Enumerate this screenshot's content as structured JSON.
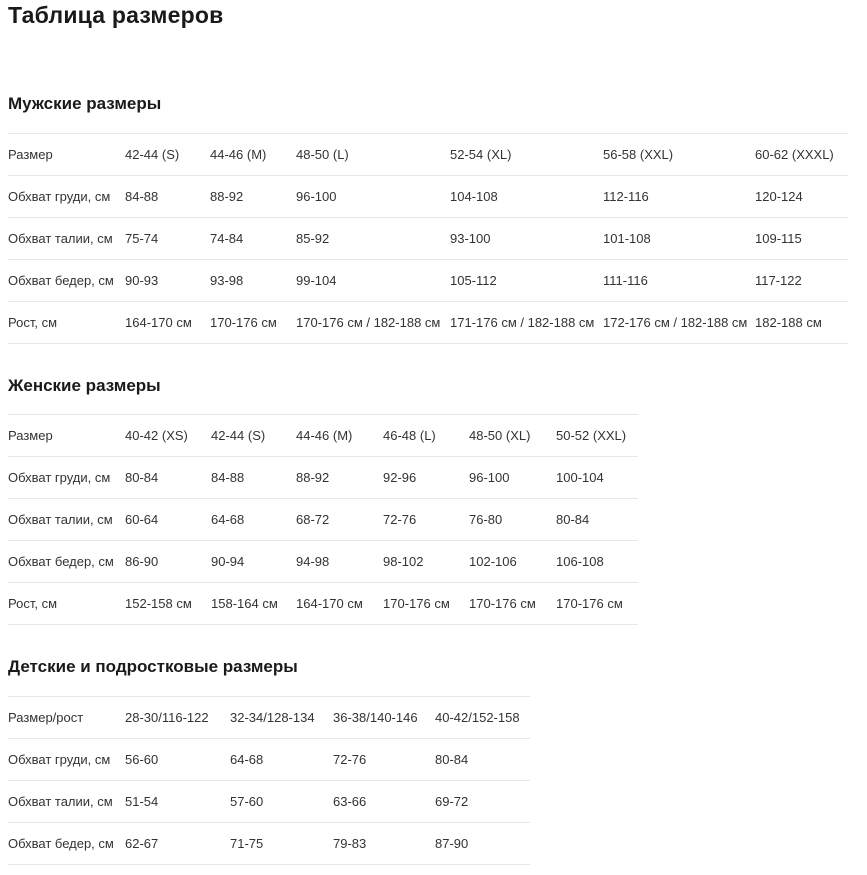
{
  "page": {
    "title": "Таблица размеров"
  },
  "sections": [
    {
      "heading": "Мужские размеры",
      "table": {
        "header": [
          "Размер",
          "42-44 (S)",
          "44-46 (M)",
          "48-50 (L)",
          "52-54 (XL)",
          "56-58 (XXL)",
          "60-62 (XXXL)"
        ],
        "rows": [
          [
            "Обхват груди, см",
            "84-88",
            "88-92",
            "96-100",
            "104-108",
            "112-116",
            "120-124"
          ],
          [
            "Обхват талии, см",
            "75-74",
            "74-84",
            "85-92",
            "93-100",
            "101-108",
            "109-115"
          ],
          [
            "Обхват бедер, см",
            "90-93",
            "93-98",
            "99-104",
            "105-112",
            "111-116",
            "117-122"
          ],
          [
            "Рост, см",
            "164-170 см",
            "170-176 см",
            "170-176 см / 182-188 см",
            "171-176 см / 182-188 см",
            "172-176 см / 182-188 см",
            "182-188 см"
          ]
        ]
      }
    },
    {
      "heading": "Женские размеры",
      "table": {
        "header": [
          "Размер",
          "40-42 (XS)",
          "42-44 (S)",
          "44-46 (M)",
          "46-48 (L)",
          "48-50 (XL)",
          "50-52 (XXL)"
        ],
        "rows": [
          [
            "Обхват груди, см",
            "80-84",
            "84-88",
            "88-92",
            "92-96",
            "96-100",
            "100-104"
          ],
          [
            "Обхват талии, см",
            "60-64",
            "64-68",
            "68-72",
            "72-76",
            "76-80",
            "80-84"
          ],
          [
            "Обхват бедер, см",
            "86-90",
            "90-94",
            "94-98",
            "98-102",
            "102-106",
            "106-108"
          ],
          [
            "Рост, см",
            "152-158 см",
            "158-164 см",
            "164-170 см",
            "170-176 см",
            "170-176 см",
            "170-176 см"
          ]
        ]
      }
    },
    {
      "heading": "Детские и подростковые размеры",
      "table": {
        "header": [
          "Размер/рост",
          "28-30/116-122",
          "32-34/128-134",
          "36-38/140-146",
          "40-42/152-158"
        ],
        "rows": [
          [
            "Обхват груди, см",
            "56-60",
            "64-68",
            "72-76",
            "80-84"
          ],
          [
            "Обхват талии, см",
            "51-54",
            "57-60",
            "63-66",
            "69-72"
          ],
          [
            "Обхват бедер, см",
            "62-67",
            "71-75",
            "79-83",
            "87-90"
          ]
        ]
      }
    }
  ],
  "colors": {
    "heading_text": "#1a1a1a",
    "body_text": "#333333",
    "divider": "#e7e7e7",
    "background": "#ffffff"
  }
}
